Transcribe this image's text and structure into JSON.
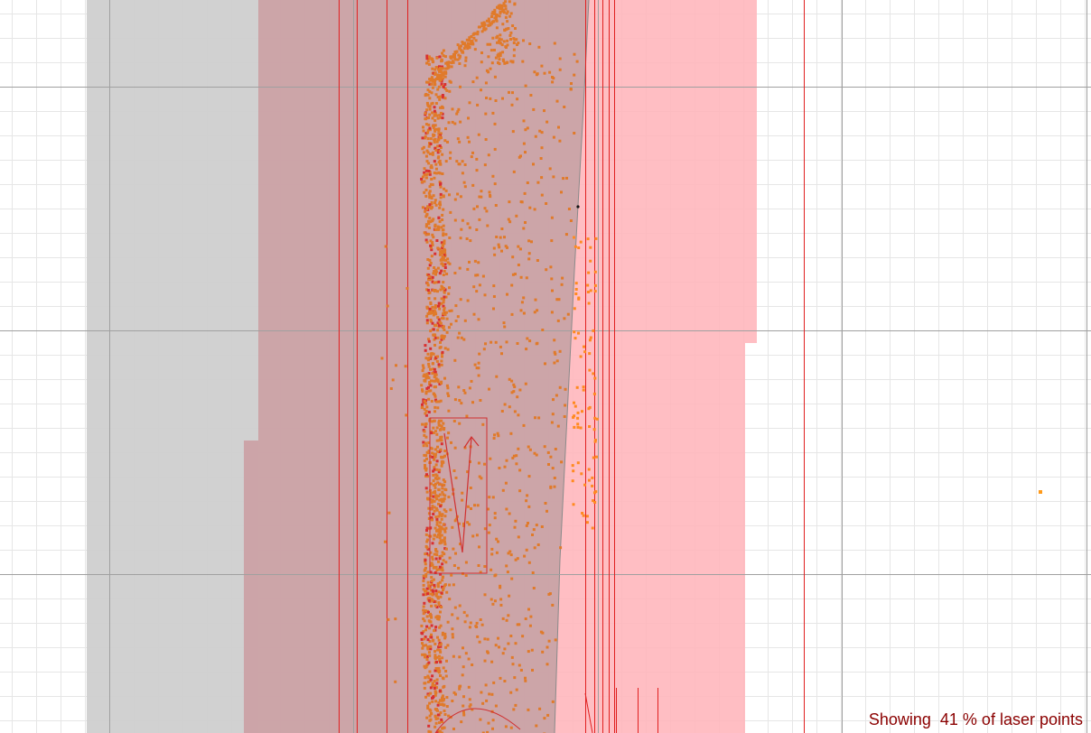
{
  "status": {
    "label": "Showing  41 % of laser points",
    "laser_point_percent": 41
  },
  "colors": {
    "grid_minor": "#e6e6e6",
    "grid_major": "#a0a0a0",
    "grey_region": "#cfcfcf",
    "occupied_pink": "#ffbcc0",
    "robot_zone": "#cfa9ab",
    "red_line": "#e02020",
    "laser_orange": "#e07a2a",
    "laser_red": "#d93030",
    "text_dark_red": "#8b0000"
  },
  "legend": {
    "grid": "grid",
    "grey_region": "explored-area",
    "pink_region": "occupancy-area",
    "robot_zone": "robot-corridor"
  }
}
